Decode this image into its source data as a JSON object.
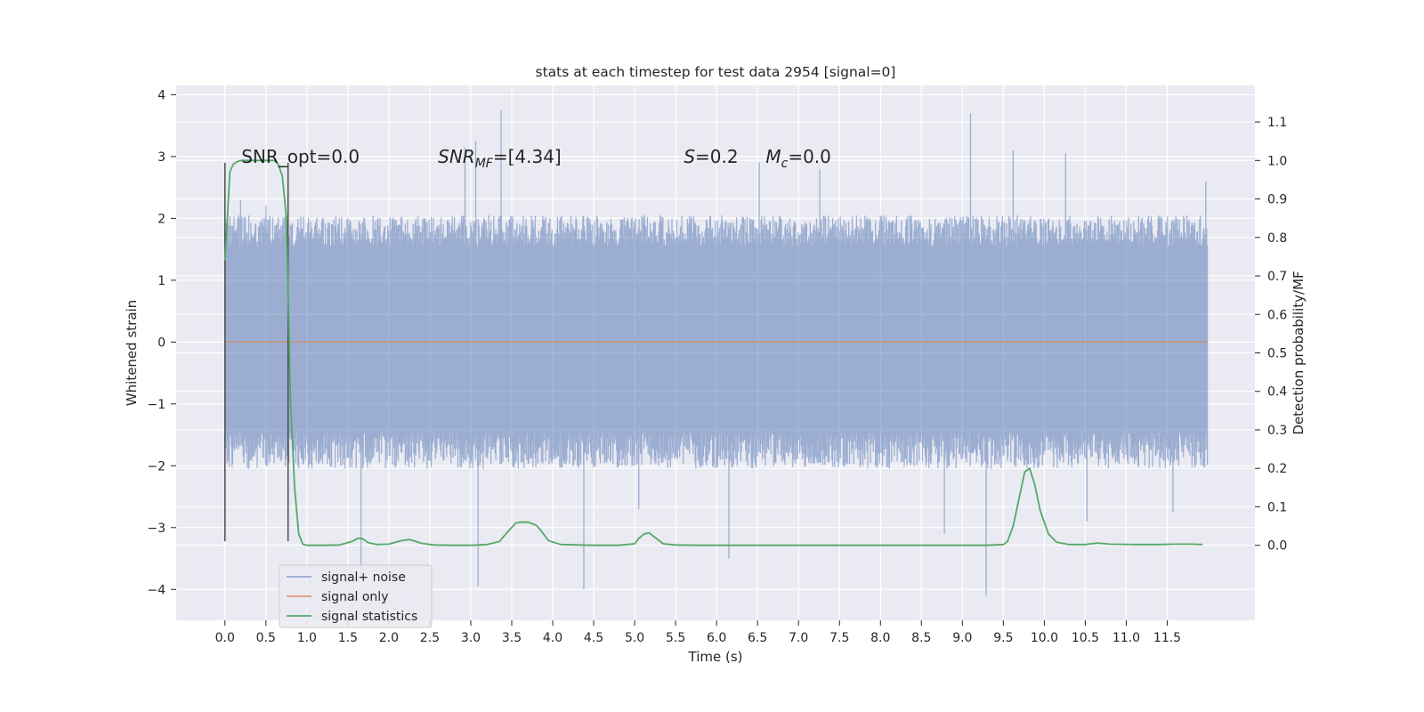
{
  "chart_data": {
    "type": "line",
    "title": "stats at each timestep for test data 2954 [signal=0]",
    "xlabel": "Time (s)",
    "ylabel": "Whitened strain",
    "y2label": "Detection probability/MF",
    "xlim": [
      -0.595,
      12.57
    ],
    "ylim": [
      -4.5,
      4.15
    ],
    "y2lim": [
      -0.195,
      1.195
    ],
    "x_ticks": [
      "0.0",
      "0.5",
      "1.0",
      "1.5",
      "2.0",
      "2.5",
      "3.0",
      "3.5",
      "4.0",
      "4.5",
      "5.0",
      "5.5",
      "6.0",
      "6.5",
      "7.0",
      "7.5",
      "8.0",
      "8.5",
      "9.0",
      "9.5",
      "10.0",
      "10.5",
      "11.0",
      "11.5"
    ],
    "y_ticks": [
      "−4",
      "−3",
      "−2",
      "−1",
      "0",
      "1",
      "2",
      "3",
      "4"
    ],
    "y2_ticks": [
      "0.0",
      "0.1",
      "0.2",
      "0.3",
      "0.4",
      "0.5",
      "0.6",
      "0.7",
      "0.8",
      "0.9",
      "1.0",
      "1.1"
    ],
    "grid": true,
    "legend_position": "lower-left",
    "colors": {
      "noise": "#4c72b0",
      "signal_only": "#dd8452",
      "statistics": "#55a868",
      "window_line": "#404040",
      "background": "#eaeaf2"
    },
    "series": [
      {
        "name": "signal+ noise",
        "axis": "left",
        "note_envelope": "dense noise, typical range approx -1.5 to 1.7, spikes up to ~3.7 and down to ~-4.1",
        "x_range": [
          0.0,
          11.99
        ],
        "spikes": [
          [
            0.19,
            2.3
          ],
          [
            0.5,
            2.2
          ],
          [
            1.66,
            -3.8
          ],
          [
            3.09,
            -3.95
          ],
          [
            3.37,
            3.75
          ],
          [
            3.06,
            3.25
          ],
          [
            4.38,
            -4.0
          ],
          [
            5.05,
            -2.7
          ],
          [
            6.15,
            -3.5
          ],
          [
            6.52,
            2.9
          ],
          [
            8.78,
            -3.1
          ],
          [
            9.1,
            3.7
          ],
          [
            9.29,
            -4.1
          ],
          [
            9.62,
            3.1
          ],
          [
            10.26,
            3.05
          ],
          [
            10.52,
            -2.9
          ],
          [
            11.57,
            -2.75
          ],
          [
            11.97,
            2.6
          ],
          [
            2.93,
            3.15
          ],
          [
            7.26,
            2.8
          ]
        ]
      },
      {
        "name": "signal only",
        "axis": "left",
        "x": [
          0.0,
          11.99
        ],
        "y": [
          0.0,
          0.0
        ]
      },
      {
        "name": "signal statistics",
        "axis": "right",
        "x": [
          0.0,
          0.03,
          0.06,
          0.1,
          0.15,
          0.2,
          0.3,
          0.4,
          0.5,
          0.6,
          0.65,
          0.7,
          0.75,
          0.8,
          0.85,
          0.9,
          0.95,
          1.0,
          1.1,
          1.2,
          1.4,
          1.55,
          1.62,
          1.68,
          1.75,
          1.85,
          2.0,
          2.15,
          2.25,
          2.3,
          2.4,
          2.55,
          2.8,
          3.0,
          3.2,
          3.35,
          3.45,
          3.55,
          3.6,
          3.7,
          3.8,
          3.85,
          3.95,
          4.1,
          4.5,
          4.8,
          5.0,
          5.05,
          5.12,
          5.18,
          5.25,
          5.35,
          5.5,
          5.8,
          6.0,
          6.5,
          7.0,
          8.0,
          8.5,
          9.0,
          9.3,
          9.5,
          9.55,
          9.62,
          9.7,
          9.76,
          9.82,
          9.88,
          9.95,
          10.05,
          10.15,
          10.3,
          10.5,
          10.65,
          10.8,
          11.1,
          11.4,
          11.6,
          11.8,
          11.93
        ],
        "y": [
          0.74,
          0.85,
          0.97,
          0.99,
          0.997,
          1.0,
          1.0,
          1.0,
          1.0,
          1.0,
          0.99,
          0.96,
          0.85,
          0.38,
          0.15,
          0.03,
          0.003,
          0.0,
          0.0,
          0.0,
          0.001,
          0.01,
          0.018,
          0.017,
          0.007,
          0.002,
          0.003,
          0.012,
          0.015,
          0.012,
          0.005,
          0.001,
          0.0,
          0.0,
          0.002,
          0.01,
          0.035,
          0.058,
          0.06,
          0.06,
          0.052,
          0.04,
          0.012,
          0.002,
          0.0,
          0.0,
          0.004,
          0.018,
          0.03,
          0.032,
          0.02,
          0.004,
          0.001,
          0.0,
          0.0,
          0.0,
          0.0,
          0.0,
          0.0,
          0.0,
          0.0,
          0.002,
          0.01,
          0.05,
          0.13,
          0.19,
          0.2,
          0.16,
          0.09,
          0.03,
          0.008,
          0.002,
          0.002,
          0.006,
          0.003,
          0.002,
          0.002,
          0.003,
          0.003,
          0.002
        ]
      }
    ],
    "vlines": [
      0.0,
      0.77
    ],
    "annotations": [
      {
        "text": "SNR_opt=0.0",
        "x": 0.2,
        "y": 3.0,
        "math": false
      },
      {
        "text": "SNR",
        "sub": "MF",
        "tail": "=[4.34]",
        "x": 2.6,
        "y": 3.0,
        "math": true
      },
      {
        "text": "S",
        "sub": "",
        "tail": "=0.2",
        "x": 5.6,
        "y": 3.0,
        "math": true
      },
      {
        "text": "M",
        "sub": "c",
        "tail": "=0.0",
        "x": 6.6,
        "y": 3.0,
        "math": true
      }
    ],
    "legend": [
      "signal+ noise",
      "signal only",
      "signal statistics"
    ]
  }
}
